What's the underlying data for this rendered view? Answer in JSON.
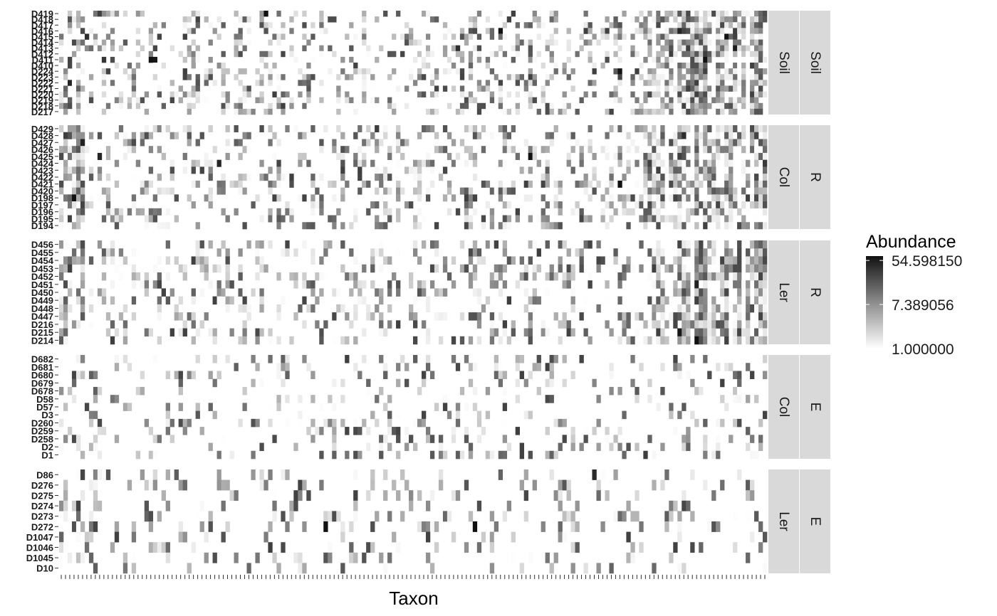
{
  "chart_data": {
    "type": "heatmap",
    "xlabel": "Taxon",
    "ylabel": "",
    "n_taxa": 166,
    "x_tick_labels_shown": false,
    "legend": {
      "title": "Abundance",
      "placement": "right",
      "scale": "log",
      "ticks": [
        "54.598150",
        "7.389056",
        "1.000000"
      ],
      "tick_values": [
        54.59815,
        7.389056,
        1.0
      ],
      "colors": {
        "low": "#ffffff",
        "high": "#111111"
      }
    },
    "panels": [
      {
        "strip_inner": "Soil",
        "strip_outer": "Soil",
        "samples": [
          "D419",
          "D418",
          "D417",
          "D416",
          "D415",
          "D414",
          "D413",
          "D412",
          "D411",
          "D410",
          "D224",
          "D223",
          "D222",
          "D221",
          "D220",
          "D219",
          "D218",
          "D217"
        ],
        "sample_labels": [
          "D419",
          "D418",
          "D417",
          "D416",
          "D415",
          "D414",
          "D413",
          "D412",
          "D411",
          "D410",
          "D224",
          "D223",
          "D222",
          "D221",
          "D220",
          "D219",
          "D218",
          "D217"
        ],
        "profile_code": "SSSSSPPPPPPPPPPPPPPPPPPPPPPPPPPPPPPPPPPPPPPPPPPPPPPPPPPPPPPPPPPPPPPPPPPPPPPPPPPPPPPPPPPPPPPPPPPPPPPPPPPPPPPPPPPPPPPPPPPPPPPPPPPPPPPPPPPPSSSSSSSSSSSSSSSSSSSSSSSSSSSSSSSSSS",
        "seed": 11
      },
      {
        "strip_inner": "Col",
        "strip_outer": "R",
        "samples": [
          "D429",
          "D428",
          "D427",
          "D426",
          "D425",
          "D424",
          "D423",
          "D422",
          "D421",
          "D420",
          "D198",
          "D197",
          "D196",
          "D195",
          "D194"
        ],
        "sample_labels": [
          "D429",
          "D428",
          "D427",
          "D426",
          "D425",
          "D424",
          "D423",
          "D422",
          "D421",
          "D420",
          "D198",
          "D197",
          "D196",
          "D195",
          "D194"
        ],
        "profile_code": "SSSSSSPPPPPPPPPPPPPPPPPPPPPPPPPPPPPPPPPPPPPPPPPPPPPPPPPPPPPPPPPPPPPPPPPPPPPPPPPPPPPPPPPPPPPPPPPPPPPPPPPPPPPPPPPPPPPPPPPPPPPPPPPPPPPPPPPPPSSSSSSSSSSSSSSSSSSSSSSSSSSSSSSSSS",
        "seed": 23
      },
      {
        "strip_inner": "Ler",
        "strip_outer": "R",
        "samples": [
          "D456",
          "D455",
          "D454",
          "D453",
          "D452",
          "D451",
          "D450",
          "D449",
          "D448",
          "D447",
          "D216",
          "D215",
          "D214"
        ],
        "sample_labels": [
          "D456",
          "D455",
          "D454",
          "D453",
          "D452",
          "D451",
          "D450",
          "D449",
          "D448",
          "D447",
          "D216",
          "D215",
          "D214"
        ],
        "profile_code": "SSSSSSPPPPPPPPPPPPPPPPPPPPPPPPPPPPPPPPPPPPPPPPPPPPPPPPPPPPPPPPPPPPPPPPPPPPPPPPPPPPPPPPPPPPPPPPPPPPPPPPPPPPPPPPPPPPPPPPPPPPPPPPPPPPPPPPPPPSSSSSSSSSSSSSSSSSSSSSSSSSSSSSSSSS",
        "seed": 37
      },
      {
        "strip_inner": "Col",
        "strip_outer": "E",
        "samples": [
          "D682",
          "D681",
          "D680",
          "D679",
          "D678",
          "D58",
          "D57",
          "D3",
          "D260",
          "D259",
          "D258",
          "D2",
          "D1"
        ],
        "sample_labels": [
          "D682",
          "D681",
          "D680",
          "D679",
          "D678",
          "D58",
          "D57",
          "D3",
          "D260",
          "D259",
          "D258",
          "D2",
          "D1"
        ],
        "profile_code": "MMMMMMMMMMLLLLLLLLLLLLLLLLLLLLLLLLLLLLLLLLLLLLLLLLLLLLLLLLLLLLLLLLLLLLLLLLLLLLLLLLLLLLLLLLLLLLLLLLLLLLLLLLLLLLLLLLLLLLLLLLLLLLLLLLLLLLLLLLLLLLLLLLLLLLLLLLLLLLLLLLLLLLLLLLLL",
        "seed": 53
      },
      {
        "strip_inner": "Ler",
        "strip_outer": "E",
        "samples": [
          "D86",
          "D276",
          "D275",
          "D274",
          "D273",
          "D272",
          "D1047",
          "D1046",
          "D1045",
          "D10"
        ],
        "sample_labels": [
          "D86",
          "D276",
          "D275",
          "D274",
          "D273",
          "D272",
          "D1047",
          "D1046",
          "D1045",
          "D10"
        ],
        "profile_code": "MMMMMMMMMMLLLLLLLLLLLLLLLLLLLLLLLLLLLLLLLLLLLLLLLLLLLLLLLLLLLLLLLLLLLLLLLLLLLLLLLLLLLLLLLLLLLLLLLLLLLLLLLLLLLLLLLLLLLLLLLLLLLLLLLLLLLLLLLLLLLLLLLLLLLLLLLLLLLLLLLLLLLLLLLLLLL",
        "seed": 71
      }
    ]
  }
}
